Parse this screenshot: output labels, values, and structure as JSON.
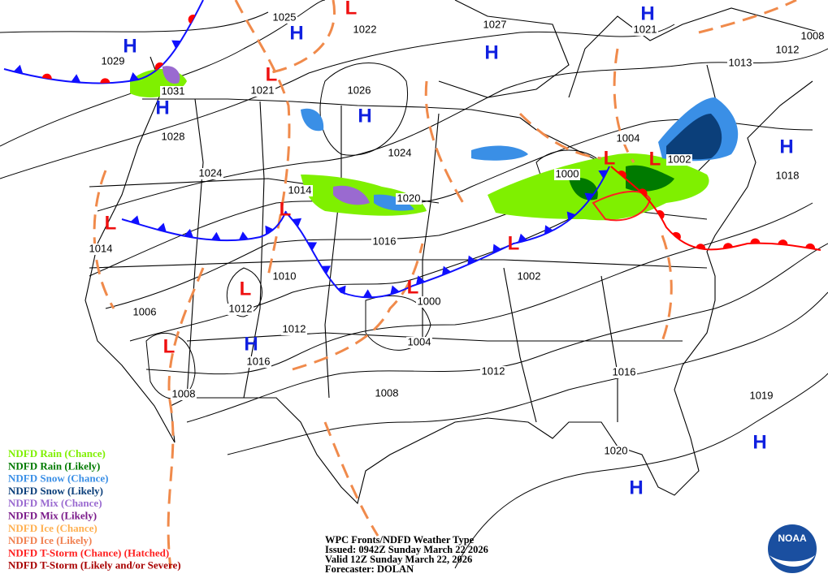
{
  "map": {
    "isobar_labels": [
      1025,
      1022,
      1027,
      1021,
      1008,
      1029,
      1031,
      1021,
      1026,
      1013,
      1012,
      1028,
      1024,
      1024,
      1004,
      1002,
      1000,
      1018,
      1014,
      1020,
      1016,
      1014,
      1010,
      1002,
      1000,
      1012,
      1006,
      1012,
      1004,
      1016,
      1008,
      1008,
      1012,
      1016,
      1019,
      1020
    ],
    "pressure_centers": [
      "H",
      "H",
      "H",
      "H",
      "H",
      "H",
      "H",
      "H",
      "H",
      "H",
      "L",
      "L",
      "L",
      "L",
      "L",
      "L",
      "L",
      "L",
      "L",
      "L"
    ],
    "legend": [
      {
        "label": "NDFD Rain (Chance)",
        "color": "#7ff000"
      },
      {
        "label": "NDFD Rain (Likely)",
        "color": "#007a00"
      },
      {
        "label": "NDFD Snow (Chance)",
        "color": "#3a8fe6"
      },
      {
        "label": "NDFD Snow (Likely)",
        "color": "#0b3f7a"
      },
      {
        "label": "NDFD Mix (Chance)",
        "color": "#9a6ad0"
      },
      {
        "label": "NDFD Mix (Likely)",
        "color": "#7a1a8a"
      },
      {
        "label": "NDFD Ice (Chance)",
        "color": "#ffb050"
      },
      {
        "label": "NDFD Ice (Likely)",
        "color": "#f08050"
      },
      {
        "label": "NDFD T-Storm (Chance) (Hatched)",
        "color": "#ff2020"
      },
      {
        "label": "NDFD T-Storm (Likely and/or Severe)",
        "color": "#a80000"
      }
    ],
    "footer": [
      "WPC Fronts/NDFD Weather Type",
      "Issued: 0942Z Sunday March 22 2026",
      "Valid 12Z Sunday March 22, 2026",
      "Forecaster: DOLAN"
    ],
    "logo": "NOAA"
  }
}
